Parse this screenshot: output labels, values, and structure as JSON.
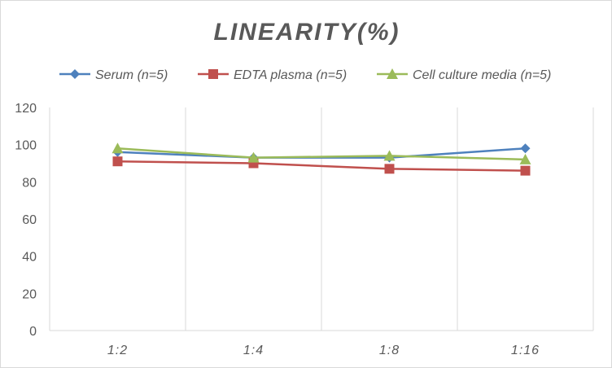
{
  "chart_data": {
    "type": "line",
    "title": "LINEARITY(%)",
    "xlabel": "",
    "ylabel": "",
    "categories": [
      "1:2",
      "1:4",
      "1:8",
      "1:16"
    ],
    "ylim": [
      0,
      120
    ],
    "yticks": [
      0,
      20,
      40,
      60,
      80,
      100,
      120
    ],
    "grid": "vertical",
    "legend_position": "top",
    "series": [
      {
        "name": "Serum (n=5)",
        "values": [
          96,
          93,
          93,
          98
        ],
        "color": "#4e81bd",
        "marker": "diamond"
      },
      {
        "name": "EDTA plasma (n=5)",
        "values": [
          91,
          90,
          87,
          86
        ],
        "color": "#c0504d",
        "marker": "square"
      },
      {
        "name": "Cell culture media (n=5)",
        "values": [
          98,
          93,
          94,
          92
        ],
        "color": "#9bbb59",
        "marker": "triangle"
      }
    ]
  }
}
